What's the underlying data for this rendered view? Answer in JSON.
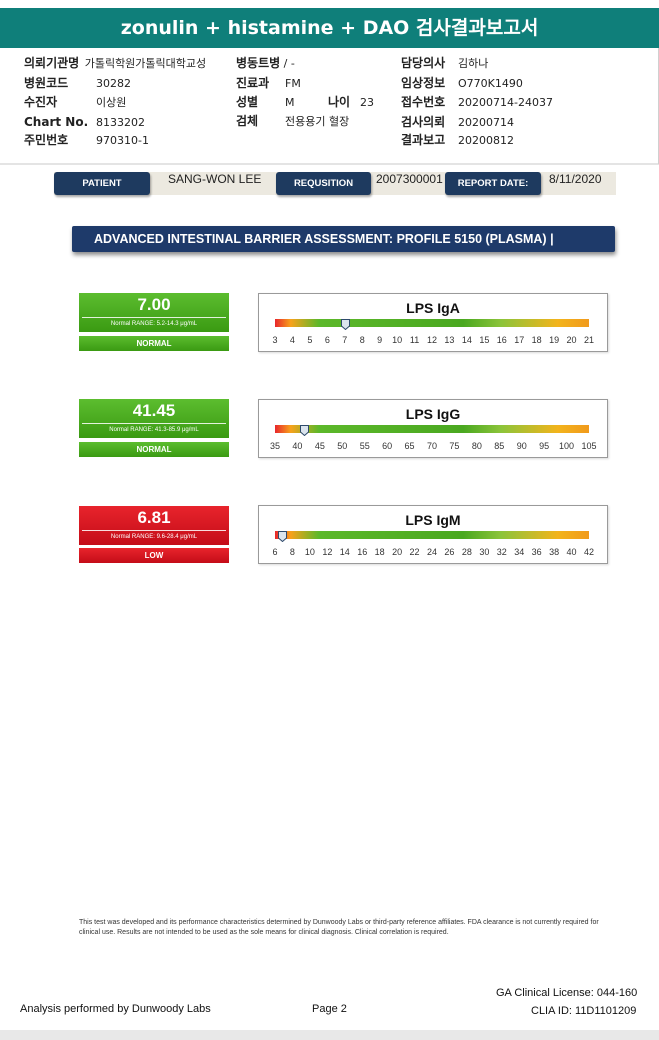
{
  "title": "zonulin + histamine + DAO 검사결과보고서",
  "header": {
    "left": [
      {
        "label": "의뢰기관명",
        "value": "가톨릭학원가톨릭대학교성"
      },
      {
        "label": "병원코드",
        "value": "30282"
      },
      {
        "label": "수진자",
        "value": "이상원"
      },
      {
        "label": "Chart No.",
        "value": "8133202"
      },
      {
        "label": "주민번호",
        "value": "970310-1"
      }
    ],
    "ward_label": "병동트병",
    "ward_value": "/ -",
    "dept_label": "진료과",
    "dept_value": "FM",
    "sex_label": "성별",
    "sex_value": "M",
    "age_label": "나이",
    "age_value": "23",
    "specimen_label": "검체",
    "specimen_value": "전용용기 혈장",
    "right": [
      {
        "label": "담당의사",
        "value": "김하나"
      },
      {
        "label": "임상정보",
        "value": "O770K1490"
      },
      {
        "label": "접수번호",
        "value": "20200714-24037"
      },
      {
        "label": "검사의뢰",
        "value": "20200714"
      },
      {
        "label": "결과보고",
        "value": "20200812"
      }
    ]
  },
  "patient_bar": {
    "patient_label": "PATIENT",
    "patient_name": "SANG-WON LEE",
    "requisition_label": "REQUSITION",
    "requisition_value": "2007300001",
    "report_date_label": "REPORT DATE:",
    "report_date_value": "8/11/2020"
  },
  "section_title": "ADVANCED INTESTINAL BARRIER ASSESSMENT: PROFILE 5150 (PLASMA) |",
  "tests": [
    {
      "name": "LPS IgA",
      "value": "7.00",
      "value_num": 7.0,
      "range": "Normal RANGE: 5.2-14.3 μg/mL",
      "status": "NORMAL",
      "color": "#4aaa1c",
      "ticks": [
        "3",
        "4",
        "5",
        "6",
        "7",
        "8",
        "9",
        "10",
        "11",
        "12",
        "13",
        "14",
        "15",
        "16",
        "17",
        "18",
        "19",
        "20",
        "21"
      ],
      "axis_min": 3,
      "axis_max": 21
    },
    {
      "name": "LPS IgG",
      "value": "41.45",
      "value_num": 41.45,
      "range": "Normal RANGE: 41.3-85.9 μg/mL",
      "status": "NORMAL",
      "color": "#4aaa1c",
      "ticks": [
        "35",
        "40",
        "45",
        "50",
        "55",
        "60",
        "65",
        "70",
        "75",
        "80",
        "85",
        "90",
        "95",
        "100",
        "105"
      ],
      "axis_min": 35,
      "axis_max": 105
    },
    {
      "name": "LPS IgM",
      "value": "6.81",
      "value_num": 6.81,
      "range": "Normal RANGE: 9.6-28.4 μg/mL",
      "status": "LOW",
      "color": "#d8141e",
      "ticks": [
        "6",
        "8",
        "10",
        "12",
        "14",
        "16",
        "18",
        "20",
        "22",
        "24",
        "26",
        "28",
        "30",
        "32",
        "34",
        "36",
        "38",
        "40",
        "42"
      ],
      "axis_min": 6,
      "axis_max": 42
    }
  ],
  "disclaimer": "This test was developed and its performance characteristics determined by Dunwoody Labs or third-party reference affiliates. FDA clearance is not currently required for clinical use. Results are not intended to be used as the sole means for clinical diagnosis. Clinical correlation is required.",
  "footer": {
    "analysis": "Analysis performed by Dunwoody Labs",
    "page": "Page 2",
    "license": "GA Clinical License: 044-160",
    "clia": "CLIA ID: 11D1101209"
  }
}
